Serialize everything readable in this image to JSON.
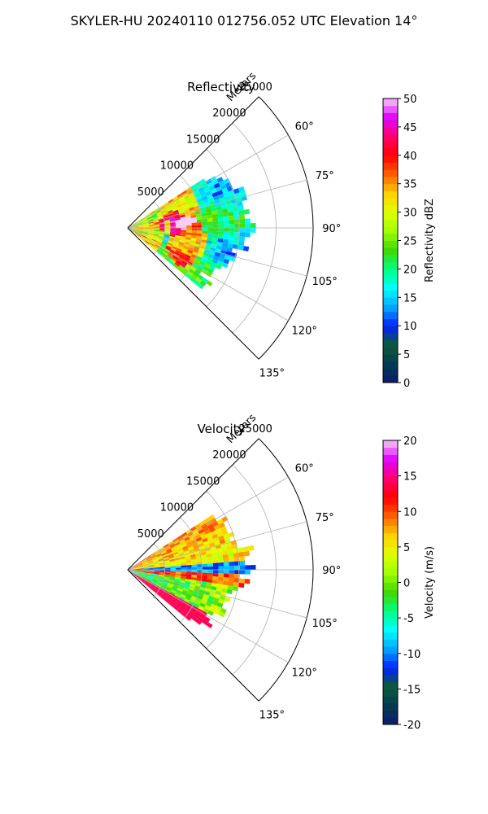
{
  "figure": {
    "title": "SKYLER-HU  20240110  012756.052 UTC Elevation 14°"
  },
  "chart_data": [
    {
      "type": "polar-sector-ppi",
      "title": "Reflectivity",
      "radial_label": "Meters",
      "theta_range_deg": [
        45,
        135
      ],
      "r_range_m": [
        0,
        25000
      ],
      "range_ticks": [
        5000,
        10000,
        15000,
        20000,
        25000
      ],
      "range_tick_labels": [
        "5000",
        "10000",
        "15000",
        "20000",
        "25000"
      ],
      "angle_ticks": [
        60,
        75,
        90,
        105,
        120,
        135
      ],
      "angle_tick_labels": [
        "60°",
        "75°",
        "90°",
        "105°",
        "120°",
        "135°"
      ],
      "grid": true,
      "colorbar": {
        "label": "Reflectivity dBZ",
        "range": [
          0,
          50
        ],
        "ticks": [
          0,
          5,
          10,
          15,
          20,
          25,
          30,
          35,
          40,
          45,
          50
        ],
        "tick_labels": [
          "0",
          "5",
          "10",
          "15",
          "20",
          "25",
          "30",
          "35",
          "40",
          "45",
          "50"
        ],
        "colors": [
          "#0b1a6e",
          "#063a52",
          "#0d5a3a",
          "#0020ff",
          "#00a8ff",
          "#00ffff",
          "#00ff80",
          "#40d800",
          "#a0ff00",
          "#e0ff00",
          "#ffd000",
          "#ff6000",
          "#ff0000",
          "#ff0070",
          "#e000ff",
          "#f7ccf7"
        ]
      },
      "data_extent": {
        "theta_deg": [
          57,
          128
        ],
        "r_m": [
          0,
          16500
        ]
      },
      "features": [
        {
          "name": "high-reflectivity core",
          "theta_deg": 67,
          "r_m": 7500,
          "value_dBZ": 36
        },
        {
          "name": "high-reflectivity core",
          "theta_deg": 103,
          "r_m": 8000,
          "value_dBZ": 40
        },
        {
          "name": "high-reflectivity band",
          "theta_deg": 85,
          "r_m": 6000,
          "value_dBZ": 32
        }
      ]
    },
    {
      "type": "polar-sector-ppi",
      "title": "Velocity",
      "radial_label": "Meters",
      "theta_range_deg": [
        45,
        135
      ],
      "r_range_m": [
        0,
        25000
      ],
      "range_ticks": [
        5000,
        10000,
        15000,
        20000,
        25000
      ],
      "range_tick_labels": [
        "5000",
        "10000",
        "15000",
        "20000",
        "25000"
      ],
      "angle_ticks": [
        60,
        75,
        90,
        105,
        120,
        135
      ],
      "angle_tick_labels": [
        "60°",
        "75°",
        "90°",
        "105°",
        "120°",
        "135°"
      ],
      "grid": true,
      "colorbar": {
        "label": "Velocity (m/s)",
        "range": [
          -20,
          20
        ],
        "ticks": [
          -20,
          -15,
          -10,
          -5,
          0,
          5,
          10,
          15,
          20
        ],
        "tick_labels": [
          "-20",
          "-15",
          "-10",
          "-5",
          "0",
          "5",
          "10",
          "15",
          "20"
        ],
        "colors": [
          "#0b1a6e",
          "#063a52",
          "#0d5a3a",
          "#0020ff",
          "#00a8ff",
          "#00ffff",
          "#00ff80",
          "#40d800",
          "#a0ff00",
          "#e0ff00",
          "#ffd000",
          "#ff6000",
          "#ff0000",
          "#ff0070",
          "#e000ff",
          "#f7ccf7"
        ]
      },
      "data_extent": {
        "theta_deg": [
          57,
          128
        ],
        "r_m": [
          0,
          16500
        ]
      },
      "features": [
        {
          "name": "outbound band",
          "theta_deg": 80,
          "r_m": 9000,
          "value_ms": 12
        },
        {
          "name": "inbound band",
          "theta_deg": 96,
          "r_m": 6000,
          "value_ms": 11
        },
        {
          "name": "receding region",
          "theta_deg": 110,
          "r_m": 10000,
          "value_ms": -6
        }
      ]
    }
  ]
}
